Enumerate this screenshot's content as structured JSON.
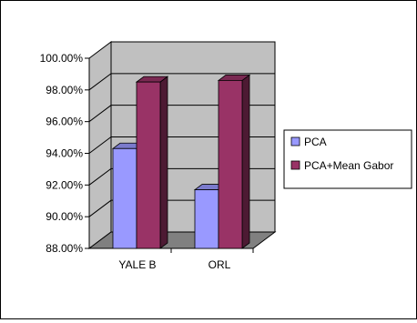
{
  "chart_data": {
    "type": "bar",
    "categories": [
      "YALE B",
      "ORL"
    ],
    "series": [
      {
        "name": "PCA",
        "values": [
          94.3,
          91.7
        ]
      },
      {
        "name": "PCA+Mean Gabor",
        "values": [
          98.5,
          98.6
        ]
      }
    ],
    "ylim": [
      88,
      100
    ],
    "yticks": [
      "100.00%",
      "98.00%",
      "96.00%",
      "94.00%",
      "92.00%",
      "90.00%",
      "88.00%"
    ],
    "grid": true,
    "legend": "right",
    "colors": {
      "series": [
        "#9999ff",
        "#993366"
      ],
      "series_side": [
        "#5c5c99",
        "#4d1a33"
      ],
      "series_top": [
        "#7a7acc",
        "#7a2952"
      ],
      "wall": "#c0c0c0",
      "floor": "#808080"
    }
  }
}
